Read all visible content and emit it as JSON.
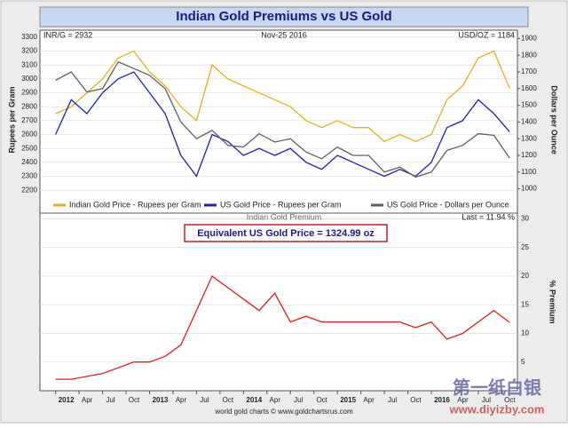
{
  "title": "Indian Gold Premiums vs US Gold",
  "footer": "world gold charts © www.goldchartsrus.com",
  "watermark": [
    "第一纸白银",
    "www.diyizby.com"
  ],
  "chart_data": [
    {
      "type": "line",
      "annotations": [
        "INR/G = 2932",
        "Nov-25 2016",
        "USD/OZ = 1184"
      ],
      "ylabel": "Rupees per Gram",
      "y2label": "Dollars per Ounce",
      "x": [
        "2012-01",
        "2012-03",
        "2012-05",
        "2012-07",
        "2012-09",
        "2012-11",
        "2013-01",
        "2013-03",
        "2013-05",
        "2013-07",
        "2013-09",
        "2013-11",
        "2014-01",
        "2014-03",
        "2014-05",
        "2014-07",
        "2014-09",
        "2014-11",
        "2015-01",
        "2015-03",
        "2015-05",
        "2015-07",
        "2015-09",
        "2015-11",
        "2016-01",
        "2016-03",
        "2016-05",
        "2016-07",
        "2016-09",
        "2016-11"
      ],
      "ylim": [
        2150,
        3350
      ],
      "yticks": [
        2200,
        2300,
        2400,
        2500,
        2600,
        2700,
        2800,
        2900,
        3000,
        3100,
        3200,
        3300
      ],
      "y2lim": [
        950,
        1950
      ],
      "y2ticks": [
        1000,
        1100,
        1200,
        1300,
        1400,
        1500,
        1600,
        1700,
        1800,
        1900
      ],
      "series": [
        {
          "name": "Indian Gold Price - Rupees per Gram",
          "color": "#e8b020",
          "values": [
            2750,
            2800,
            2900,
            3000,
            3150,
            3200,
            3050,
            2950,
            2800,
            2700,
            3100,
            3000,
            2950,
            2900,
            2850,
            2800,
            2700,
            2650,
            2700,
            2650,
            2650,
            2550,
            2600,
            2550,
            2600,
            2850,
            2950,
            3150,
            3200,
            2932
          ]
        },
        {
          "name": "US Gold Price - Rupees per Gram",
          "color": "#2020c0",
          "values": [
            2600,
            2850,
            2750,
            2900,
            3000,
            3050,
            2900,
            2750,
            2450,
            2300,
            2600,
            2550,
            2450,
            2500,
            2450,
            2500,
            2400,
            2350,
            2450,
            2400,
            2350,
            2300,
            2350,
            2300,
            2400,
            2650,
            2700,
            2850,
            2750,
            2620
          ]
        },
        {
          "name": "US Gold Price - Dollars per Ounce",
          "color": "#606060",
          "axis": "y2",
          "values": [
            1650,
            1700,
            1580,
            1600,
            1760,
            1720,
            1680,
            1600,
            1400,
            1300,
            1350,
            1260,
            1250,
            1330,
            1280,
            1300,
            1220,
            1180,
            1250,
            1200,
            1200,
            1100,
            1130,
            1070,
            1100,
            1230,
            1260,
            1330,
            1320,
            1184
          ]
        }
      ]
    },
    {
      "type": "line",
      "title": "Indian Gold Premium",
      "annotations": [
        "Last = 11.94 %",
        "Equivalent US Gold Price = 1324.99 oz"
      ],
      "ylabel": "% Premium",
      "x": [
        "2012-01",
        "2012-03",
        "2012-05",
        "2012-07",
        "2012-09",
        "2012-11",
        "2013-01",
        "2013-03",
        "2013-05",
        "2013-07",
        "2013-09",
        "2013-11",
        "2014-01",
        "2014-03",
        "2014-05",
        "2014-07",
        "2014-09",
        "2014-11",
        "2015-01",
        "2015-03",
        "2015-05",
        "2015-07",
        "2015-09",
        "2015-11",
        "2016-01",
        "2016-03",
        "2016-05",
        "2016-07",
        "2016-09",
        "2016-11"
      ],
      "xticks": [
        {
          "value": "2012-01",
          "label": "2012"
        },
        {
          "value": "2012-04",
          "label": "Apr"
        },
        {
          "value": "2012-07",
          "label": "Jul"
        },
        {
          "value": "2012-10",
          "label": "Oct"
        },
        {
          "value": "2013-01",
          "label": "2013"
        },
        {
          "value": "2013-04",
          "label": "Apr"
        },
        {
          "value": "2013-07",
          "label": "Jul"
        },
        {
          "value": "2013-10",
          "label": "Oct"
        },
        {
          "value": "2014-01",
          "label": "2014"
        },
        {
          "value": "2014-04",
          "label": "Apr"
        },
        {
          "value": "2014-07",
          "label": "Jul"
        },
        {
          "value": "2014-10",
          "label": "Oct"
        },
        {
          "value": "2015-01",
          "label": "2015"
        },
        {
          "value": "2015-04",
          "label": "Apr"
        },
        {
          "value": "2015-07",
          "label": "Jul"
        },
        {
          "value": "2015-10",
          "label": "Oct"
        },
        {
          "value": "2016-01",
          "label": "2016"
        },
        {
          "value": "2016-04",
          "label": "Apr"
        },
        {
          "value": "2016-07",
          "label": "Jul"
        },
        {
          "value": "2016-10",
          "label": "Oct"
        }
      ],
      "ylim": [
        0,
        31
      ],
      "yticks": [
        5,
        10,
        15,
        20,
        25,
        30
      ],
      "series": [
        {
          "color": "#e02020",
          "values": [
            2,
            2,
            2.5,
            3,
            4,
            5,
            5,
            6,
            8,
            14,
            20,
            18,
            16,
            14,
            17,
            12,
            13,
            12,
            12,
            12,
            12,
            12,
            12,
            11,
            12,
            9,
            10,
            12,
            14,
            11.94
          ]
        }
      ]
    }
  ]
}
